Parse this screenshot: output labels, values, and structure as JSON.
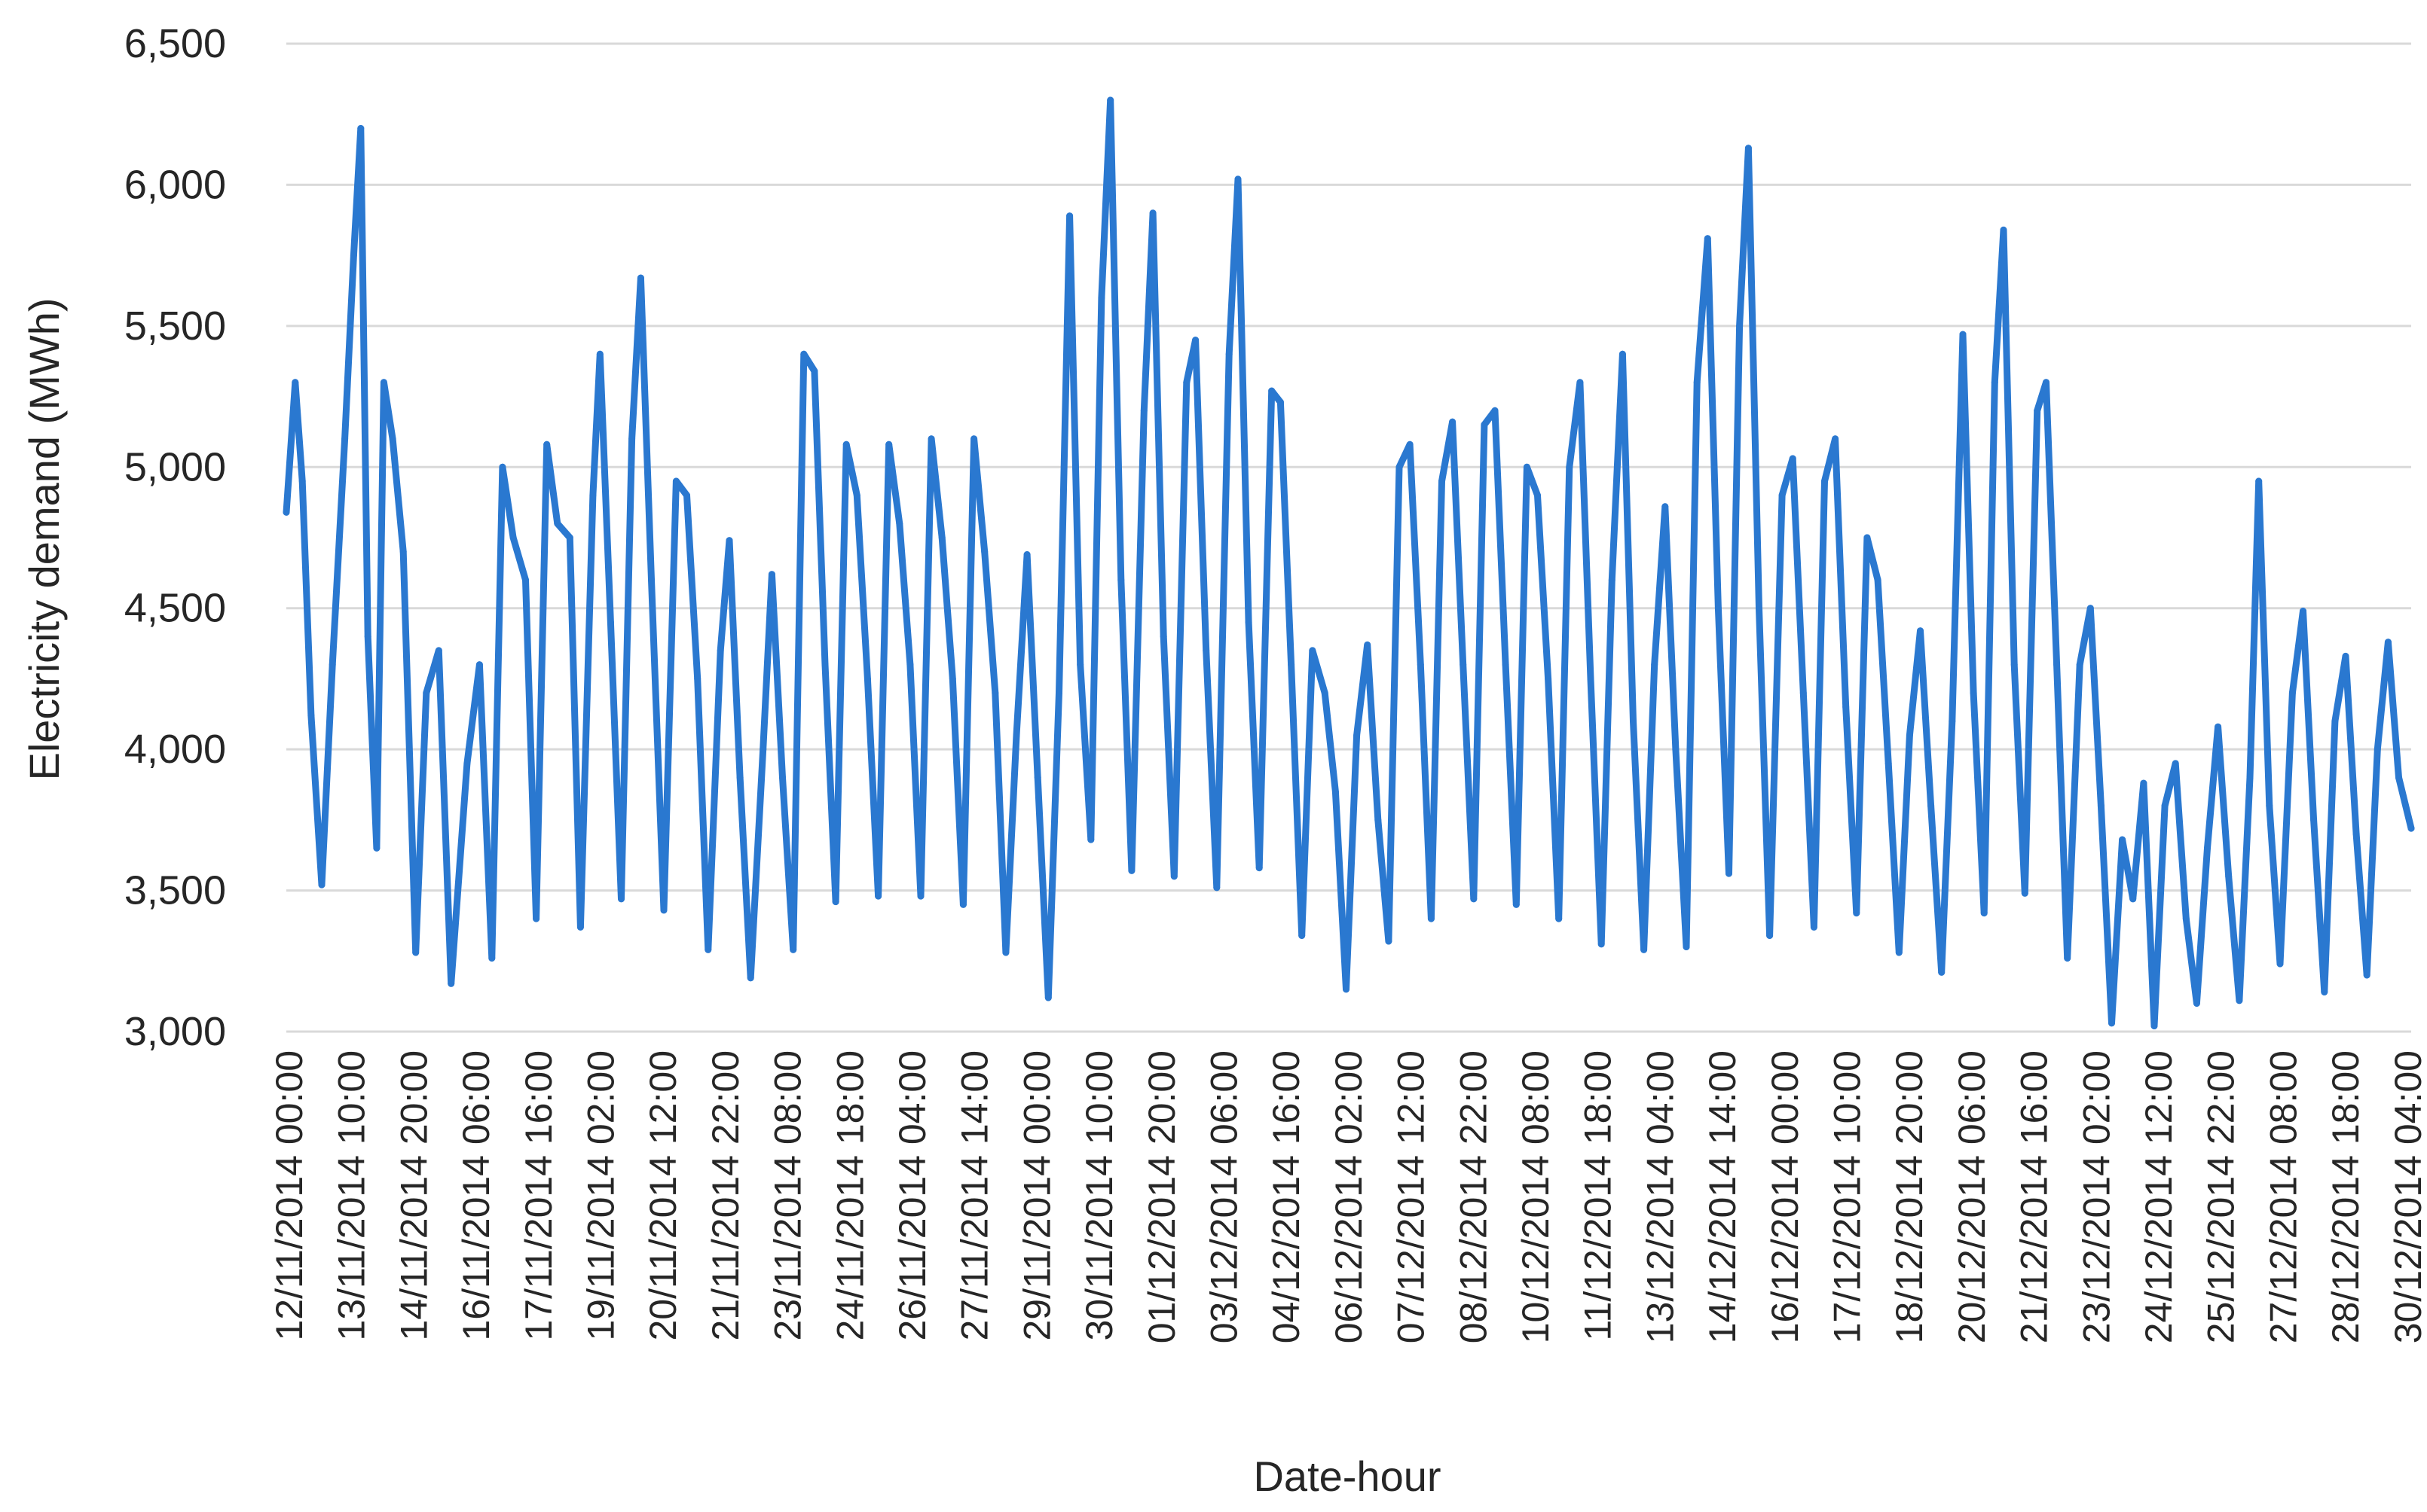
{
  "chart_data": {
    "type": "line",
    "title": "",
    "xlabel": "Date-hour",
    "ylabel": "Electricity demand (MWh)",
    "ylim": [
      3000,
      6500
    ],
    "yticks": [
      3000,
      3500,
      4000,
      4500,
      5000,
      5500,
      6000,
      6500
    ],
    "ytick_labels": [
      "3,000",
      "3,500",
      "4,000",
      "4,500",
      "5,000",
      "5,500",
      "6,000",
      "6,500"
    ],
    "x_range": [
      "12/11/2014 00:00",
      "31/12/2014 23:00"
    ],
    "x_resolution": "hourly",
    "xtick_labels": [
      "12/11/2014 00:00",
      "13/11/2014 10:00",
      "14/11/2014 20:00",
      "16/11/2014 06:00",
      "17/11/2014 16:00",
      "19/11/2014 02:00",
      "20/11/2014 12:00",
      "21/11/2014 22:00",
      "23/11/2014 08:00",
      "24/11/2014 18:00",
      "26/11/2014 04:00",
      "27/11/2014 14:00",
      "29/11/2014 00:00",
      "30/11/2014 10:00",
      "01/12/2014 20:00",
      "03/12/2014 06:00",
      "04/12/2014 16:00",
      "06/12/2014 02:00",
      "07/12/2014 12:00",
      "08/12/2014 22:00",
      "10/12/2014 08:00",
      "11/12/2014 18:00",
      "13/12/2014 04:00",
      "14/12/2014 14:00",
      "16/12/2014 00:00",
      "17/12/2014 10:00",
      "18/12/2014 20:00",
      "20/12/2014 06:00",
      "21/12/2014 16:00",
      "23/12/2014 02:00",
      "24/12/2014 12:00",
      "25/12/2014 22:00",
      "27/12/2014 08:00",
      "28/12/2014 18:00",
      "30/12/2014 04:00"
    ],
    "grid": true,
    "legend": "none",
    "series": [
      {
        "color": "#2a78d0",
        "points": [
          [
            "12/11/2014 00:00",
            4840
          ],
          [
            "12/11/2014 05:00",
            5300
          ],
          [
            "12/11/2014 09:00",
            4950
          ],
          [
            "12/11/2014 14:00",
            4120
          ],
          [
            "12/11/2014 20:00",
            3520
          ],
          [
            "13/11/2014 02:00",
            4300
          ],
          [
            "13/11/2014 09:00",
            5100
          ],
          [
            "13/11/2014 14:00",
            5750
          ],
          [
            "13/11/2014 18:00",
            6200
          ],
          [
            "13/11/2014 22:00",
            4400
          ],
          [
            "14/11/2014 03:00",
            3650
          ],
          [
            "14/11/2014 07:00",
            5300
          ],
          [
            "14/11/2014 12:00",
            5100
          ],
          [
            "14/11/2014 18:00",
            4700
          ],
          [
            "15/11/2014 01:00",
            3280
          ],
          [
            "15/11/2014 07:00",
            4200
          ],
          [
            "15/11/2014 14:00",
            4350
          ],
          [
            "15/11/2014 21:00",
            3170
          ],
          [
            "16/11/2014 06:00",
            3950
          ],
          [
            "16/11/2014 13:00",
            4300
          ],
          [
            "16/11/2014 20:00",
            3260
          ],
          [
            "17/11/2014 02:00",
            5000
          ],
          [
            "17/11/2014 08:00",
            4750
          ],
          [
            "17/11/2014 15:00",
            4600
          ],
          [
            "17/11/2014 21:00",
            3400
          ],
          [
            "18/11/2014 03:00",
            5080
          ],
          [
            "18/11/2014 09:00",
            4800
          ],
          [
            "18/11/2014 16:00",
            4750
          ],
          [
            "18/11/2014 22:00",
            3370
          ],
          [
            "19/11/2014 05:00",
            4900
          ],
          [
            "19/11/2014 09:00",
            5400
          ],
          [
            "19/11/2014 15:00",
            4450
          ],
          [
            "19/11/2014 21:00",
            3470
          ],
          [
            "20/11/2014 03:00",
            5100
          ],
          [
            "20/11/2014 08:00",
            5670
          ],
          [
            "20/11/2014 14:00",
            4600
          ],
          [
            "20/11/2014 21:00",
            3430
          ],
          [
            "21/11/2014 04:00",
            4950
          ],
          [
            "21/11/2014 10:00",
            4900
          ],
          [
            "21/11/2014 16:00",
            4250
          ],
          [
            "21/11/2014 22:00",
            3290
          ],
          [
            "22/11/2014 05:00",
            4350
          ],
          [
            "22/11/2014 10:00",
            4740
          ],
          [
            "22/11/2014 16:00",
            3900
          ],
          [
            "22/11/2014 22:00",
            3190
          ],
          [
            "23/11/2014 05:00",
            4000
          ],
          [
            "23/11/2014 10:00",
            4620
          ],
          [
            "23/11/2014 16:00",
            3900
          ],
          [
            "23/11/2014 22:00",
            3290
          ],
          [
            "24/11/2014 04:00",
            5400
          ],
          [
            "24/11/2014 10:00",
            5340
          ],
          [
            "24/11/2014 16:00",
            4300
          ],
          [
            "24/11/2014 22:00",
            3460
          ],
          [
            "25/11/2014 04:00",
            5080
          ],
          [
            "25/11/2014 10:00",
            4900
          ],
          [
            "25/11/2014 16:00",
            4250
          ],
          [
            "25/11/2014 22:00",
            3480
          ],
          [
            "26/11/2014 04:00",
            5080
          ],
          [
            "26/11/2014 10:00",
            4800
          ],
          [
            "26/11/2014 16:00",
            4300
          ],
          [
            "26/11/2014 22:00",
            3480
          ],
          [
            "27/11/2014 04:00",
            5100
          ],
          [
            "27/11/2014 10:00",
            4750
          ],
          [
            "27/11/2014 16:00",
            4250
          ],
          [
            "27/11/2014 22:00",
            3450
          ],
          [
            "28/11/2014 04:00",
            5100
          ],
          [
            "28/11/2014 10:00",
            4700
          ],
          [
            "28/11/2014 16:00",
            4200
          ],
          [
            "28/11/2014 22:00",
            3280
          ],
          [
            "29/11/2014 04:00",
            4050
          ],
          [
            "29/11/2014 10:00",
            4690
          ],
          [
            "29/11/2014 16:00",
            3900
          ],
          [
            "29/11/2014 22:00",
            3120
          ],
          [
            "30/11/2014 04:00",
            4200
          ],
          [
            "30/11/2014 10:00",
            5890
          ],
          [
            "30/11/2014 16:00",
            4300
          ],
          [
            "30/11/2014 22:00",
            3680
          ],
          [
            "01/12/2014 04:00",
            5600
          ],
          [
            "01/12/2014 09:00",
            6300
          ],
          [
            "01/12/2014 15:00",
            4600
          ],
          [
            "01/12/2014 21:00",
            3570
          ],
          [
            "02/12/2014 04:00",
            5200
          ],
          [
            "02/12/2014 09:00",
            5900
          ],
          [
            "02/12/2014 15:00",
            4400
          ],
          [
            "02/12/2014 21:00",
            3550
          ],
          [
            "03/12/2014 04:00",
            5300
          ],
          [
            "03/12/2014 09:00",
            5450
          ],
          [
            "03/12/2014 15:00",
            4350
          ],
          [
            "03/12/2014 21:00",
            3510
          ],
          [
            "04/12/2014 04:00",
            5400
          ],
          [
            "04/12/2014 09:00",
            6020
          ],
          [
            "04/12/2014 15:00",
            4450
          ],
          [
            "04/12/2014 21:00",
            3580
          ],
          [
            "05/12/2014 04:00",
            5270
          ],
          [
            "05/12/2014 09:00",
            5230
          ],
          [
            "05/12/2014 15:00",
            4300
          ],
          [
            "05/12/2014 21:00",
            3340
          ],
          [
            "06/12/2014 03:00",
            4350
          ],
          [
            "06/12/2014 10:00",
            4200
          ],
          [
            "06/12/2014 16:00",
            3850
          ],
          [
            "06/12/2014 22:00",
            3150
          ],
          [
            "07/12/2014 04:00",
            4050
          ],
          [
            "07/12/2014 10:00",
            4370
          ],
          [
            "07/12/2014 16:00",
            3750
          ],
          [
            "07/12/2014 22:00",
            3320
          ],
          [
            "08/12/2014 04:00",
            5000
          ],
          [
            "08/12/2014 10:00",
            5080
          ],
          [
            "08/12/2014 16:00",
            4300
          ],
          [
            "08/12/2014 22:00",
            3400
          ],
          [
            "09/12/2014 04:00",
            4950
          ],
          [
            "09/12/2014 10:00",
            5160
          ],
          [
            "09/12/2014 16:00",
            4300
          ],
          [
            "09/12/2014 22:00",
            3470
          ],
          [
            "10/12/2014 04:00",
            5150
          ],
          [
            "10/12/2014 10:00",
            5200
          ],
          [
            "10/12/2014 16:00",
            4300
          ],
          [
            "10/12/2014 22:00",
            3450
          ],
          [
            "11/12/2014 04:00",
            5000
          ],
          [
            "11/12/2014 10:00",
            4900
          ],
          [
            "11/12/2014 16:00",
            4250
          ],
          [
            "11/12/2014 22:00",
            3400
          ],
          [
            "12/12/2014 04:00",
            5000
          ],
          [
            "12/12/2014 10:00",
            5300
          ],
          [
            "12/12/2014 16:00",
            4250
          ],
          [
            "12/12/2014 22:00",
            3310
          ],
          [
            "13/12/2014 04:00",
            4600
          ],
          [
            "13/12/2014 10:00",
            5400
          ],
          [
            "13/12/2014 16:00",
            4100
          ],
          [
            "13/12/2014 22:00",
            3290
          ],
          [
            "14/12/2014 04:00",
            4300
          ],
          [
            "14/12/2014 10:00",
            4860
          ],
          [
            "14/12/2014 16:00",
            4000
          ],
          [
            "14/12/2014 22:00",
            3300
          ],
          [
            "15/12/2014 04:00",
            5300
          ],
          [
            "15/12/2014 10:00",
            5810
          ],
          [
            "15/12/2014 16:00",
            4500
          ],
          [
            "15/12/2014 22:00",
            3560
          ],
          [
            "16/12/2014 04:00",
            5500
          ],
          [
            "16/12/2014 09:00",
            6130
          ],
          [
            "16/12/2014 15:00",
            4500
          ],
          [
            "16/12/2014 21:00",
            3340
          ],
          [
            "17/12/2014 04:00",
            4900
          ],
          [
            "17/12/2014 10:00",
            5030
          ],
          [
            "17/12/2014 16:00",
            4200
          ],
          [
            "17/12/2014 22:00",
            3370
          ],
          [
            "18/12/2014 04:00",
            4950
          ],
          [
            "18/12/2014 10:00",
            5100
          ],
          [
            "18/12/2014 16:00",
            4150
          ],
          [
            "18/12/2014 22:00",
            3420
          ],
          [
            "19/12/2014 04:00",
            4750
          ],
          [
            "19/12/2014 10:00",
            4600
          ],
          [
            "19/12/2014 16:00",
            3950
          ],
          [
            "19/12/2014 22:00",
            3280
          ],
          [
            "20/12/2014 04:00",
            4050
          ],
          [
            "20/12/2014 10:00",
            4420
          ],
          [
            "20/12/2014 16:00",
            3800
          ],
          [
            "20/12/2014 22:00",
            3210
          ],
          [
            "21/12/2014 04:00",
            4100
          ],
          [
            "21/12/2014 10:00",
            5470
          ],
          [
            "21/12/2014 16:00",
            4200
          ],
          [
            "21/12/2014 22:00",
            3420
          ],
          [
            "22/12/2014 04:00",
            5300
          ],
          [
            "22/12/2014 09:00",
            5840
          ],
          [
            "22/12/2014 15:00",
            4300
          ],
          [
            "22/12/2014 21:00",
            3490
          ],
          [
            "23/12/2014 04:00",
            5200
          ],
          [
            "23/12/2014 09:00",
            5300
          ],
          [
            "23/12/2014 15:00",
            4300
          ],
          [
            "23/12/2014 21:00",
            3260
          ],
          [
            "24/12/2014 04:00",
            4300
          ],
          [
            "24/12/2014 10:00",
            4500
          ],
          [
            "24/12/2014 16:00",
            3800
          ],
          [
            "24/12/2014 22:00",
            3030
          ],
          [
            "25/12/2014 04:00",
            3680
          ],
          [
            "25/12/2014 10:00",
            3470
          ],
          [
            "25/12/2014 16:00",
            3880
          ],
          [
            "25/12/2014 22:00",
            3020
          ],
          [
            "26/12/2014 04:00",
            3800
          ],
          [
            "26/12/2014 10:00",
            3950
          ],
          [
            "26/12/2014 16:00",
            3400
          ],
          [
            "26/12/2014 22:00",
            3100
          ],
          [
            "27/12/2014 04:00",
            3650
          ],
          [
            "27/12/2014 10:00",
            4080
          ],
          [
            "27/12/2014 16:00",
            3550
          ],
          [
            "27/12/2014 22:00",
            3110
          ],
          [
            "28/12/2014 04:00",
            3900
          ],
          [
            "28/12/2014 09:00",
            4950
          ],
          [
            "28/12/2014 15:00",
            3800
          ],
          [
            "28/12/2014 21:00",
            3240
          ],
          [
            "29/12/2014 04:00",
            4200
          ],
          [
            "29/12/2014 10:00",
            4490
          ],
          [
            "29/12/2014 16:00",
            3750
          ],
          [
            "29/12/2014 22:00",
            3140
          ],
          [
            "30/12/2014 04:00",
            4100
          ],
          [
            "30/12/2014 10:00",
            4330
          ],
          [
            "30/12/2014 16:00",
            3700
          ],
          [
            "30/12/2014 22:00",
            3200
          ],
          [
            "31/12/2014 04:00",
            4000
          ],
          [
            "31/12/2014 10:00",
            4380
          ],
          [
            "31/12/2014 16:00",
            3900
          ],
          [
            "31/12/2014 23:00",
            3720
          ]
        ]
      }
    ]
  }
}
